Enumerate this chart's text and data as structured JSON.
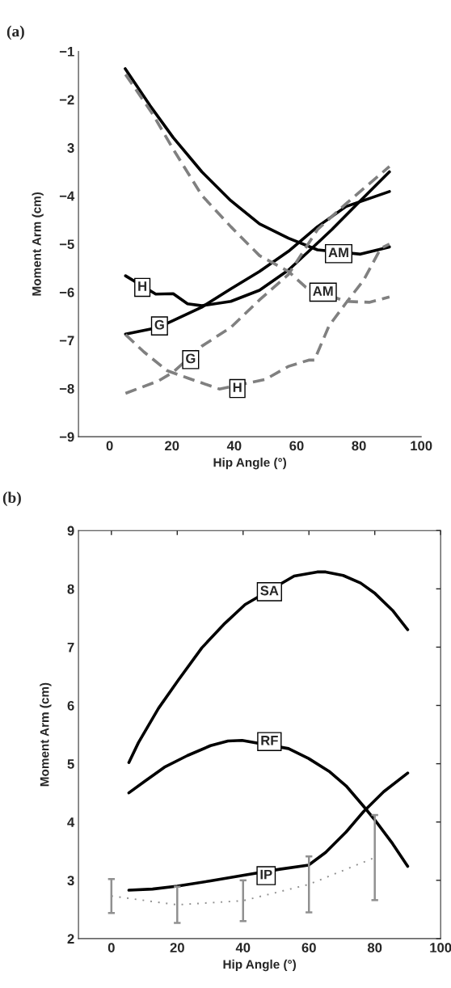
{
  "chart_data": [
    {
      "type": "line",
      "title": "(a)",
      "xlabel": "Hip Angle (°)",
      "ylabel": "Moment Arm (cm)",
      "xlim": [
        -10,
        100
      ],
      "xticks": [
        0,
        20,
        40,
        60,
        80,
        100
      ],
      "ylim": [
        -9,
        -1
      ],
      "yticks": [
        -1,
        -2,
        {
          "value": -3,
          "label": "3"
        },
        -4,
        -5,
        -6,
        -7,
        -8,
        -9
      ],
      "grid": false,
      "series": [
        {
          "color": "#000000",
          "line_style": "solid",
          "x": [
            5,
            13,
            20.4,
            29.6,
            38.9,
            48.1,
            57.4,
            66.7,
            80.5,
            89.8
          ],
          "values": [
            -1.36,
            -2.13,
            -2.79,
            -3.5,
            -4.1,
            -4.58,
            -4.88,
            -5.12,
            -5.21,
            -5.06
          ]
        },
        {
          "color": "#000000",
          "line_style": "solid",
          "x": [
            5.1,
            15.7,
            29.6,
            38.9,
            48.1,
            57.4,
            66.7,
            75.9,
            89.8
          ],
          "values": [
            -6.87,
            -6.73,
            -6.31,
            -5.93,
            -5.57,
            -5.15,
            -4.64,
            -4.22,
            -3.91
          ]
        },
        {
          "color": "#000000",
          "line_style": "solid",
          "x": [
            5.1,
            14.8,
            20.4,
            25,
            29.6,
            38.9,
            48.1,
            57.4,
            63.9,
            71.3,
            80.5,
            89.8
          ],
          "values": [
            -5.66,
            -6.04,
            -6.03,
            -6.24,
            -6.28,
            -6.19,
            -5.96,
            -5.54,
            -5.15,
            -4.7,
            -4.1,
            -3.5
          ]
        },
        {
          "color": "#808080",
          "line_style": "dashed",
          "x": [
            5.1,
            13.9,
            20.4,
            29.6,
            38.9,
            48.1,
            57.4,
            63,
            75.9,
            83.3,
            89.8
          ],
          "values": [
            -1.48,
            -2.31,
            -3.03,
            -3.99,
            -4.64,
            -5.24,
            -5.57,
            -5.9,
            -6.19,
            -6.21,
            -6.1
          ]
        },
        {
          "color": "#808080",
          "line_style": "dashed",
          "x": [
            5.1,
            15.7,
            20.4,
            29.6,
            38.9,
            48.1,
            57.4,
            66.7,
            75.9,
            89.8
          ],
          "values": [
            -8.1,
            -7.84,
            -7.66,
            -7.12,
            -6.73,
            -6.16,
            -5.63,
            -4.7,
            -4.16,
            -3.39
          ]
        },
        {
          "color": "#808080",
          "line_style": "dashed",
          "x": [
            5.1,
            11,
            18.5,
            25,
            35.2,
            50,
            57.4,
            63.9,
            65.7,
            70.4,
            75.9,
            81.5,
            87,
            89.8
          ],
          "values": [
            -6.88,
            -7.24,
            -7.63,
            -7.78,
            -8.01,
            -7.81,
            -7.54,
            -7.41,
            -7.41,
            -6.7,
            -6.22,
            -5.75,
            -5.09,
            -5.0
          ]
        }
      ],
      "annotations": [
        {
          "text": "H",
          "x": 10.5,
          "y": -5.9
        },
        {
          "text": "G",
          "x": 16,
          "y": -6.7
        },
        {
          "text": "AM",
          "x": 73.5,
          "y": -5.2
        },
        {
          "text": "AM",
          "x": 68.5,
          "y": -6.0
        },
        {
          "text": "G",
          "x": 26,
          "y": -7.4
        },
        {
          "text": "H",
          "x": 41,
          "y": -8.0
        }
      ]
    },
    {
      "type": "line",
      "title": "(b)",
      "xlabel": "Hip Angle (°)",
      "ylabel": "Moment Arm (cm)",
      "xlim": [
        -10,
        100
      ],
      "xticks": [
        0,
        20,
        40,
        60,
        80,
        100
      ],
      "ylim": [
        2,
        9
      ],
      "yticks": [
        2,
        3,
        4,
        5,
        6,
        7,
        8,
        9
      ],
      "grid": false,
      "series": [
        {
          "color": "#000000",
          "line_style": "solid",
          "x": [
            5.3,
            8.2,
            14.3,
            20.4,
            27.5,
            34.5,
            40.6,
            55.5,
            62.5,
            65.1,
            70.4,
            75.7,
            80.1,
            85.4,
            90
          ],
          "values": [
            5.02,
            5.36,
            5.95,
            6.44,
            6.99,
            7.41,
            7.73,
            8.22,
            8.29,
            8.29,
            8.23,
            8.1,
            7.92,
            7.63,
            7.3
          ]
        },
        {
          "color": "#000000",
          "line_style": "solid",
          "x": [
            5.3,
            9.9,
            16.1,
            23.1,
            30.1,
            35.4,
            39.7,
            53.8,
            59.9,
            66.1,
            71.3,
            76.6,
            80.1,
            85.4,
            90
          ],
          "values": [
            4.5,
            4.69,
            4.94,
            5.14,
            5.31,
            5.39,
            5.4,
            5.26,
            5.09,
            4.87,
            4.62,
            4.27,
            4.03,
            3.63,
            3.24
          ]
        },
        {
          "color": "#000000",
          "line_style": "solid",
          "x": [
            5.3,
            12.5,
            20,
            30.1,
            40.6,
            51.1,
            59.9,
            65.1,
            71.3,
            76.6,
            82.7,
            90
          ],
          "values": [
            2.83,
            2.85,
            2.9,
            2.99,
            3.09,
            3.19,
            3.26,
            3.48,
            3.83,
            4.18,
            4.52,
            4.84
          ]
        },
        {
          "color": "#909090",
          "line_style": "dotted",
          "x": [
            0,
            20,
            40,
            60,
            80
          ],
          "values": [
            2.73,
            2.58,
            2.65,
            2.93,
            3.39
          ],
          "errors": [
            0.29,
            0.31,
            0.35,
            0.48,
            0.73
          ]
        }
      ],
      "annotations": [
        {
          "text": "SA",
          "x": 48,
          "y": 7.95
        },
        {
          "text": "RF",
          "x": 48,
          "y": 5.38
        },
        {
          "text": "IP",
          "x": 47,
          "y": 3.08
        }
      ]
    }
  ]
}
